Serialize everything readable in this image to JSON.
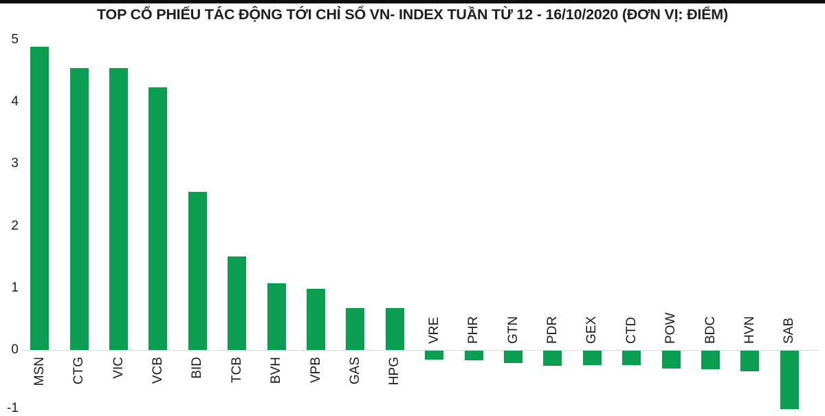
{
  "chart_data": {
    "type": "bar",
    "title": "TOP CỔ PHIẾU TÁC ĐỘNG TỚI CHỈ SỐ VN- INDEX TUẦN TỪ 12 - 16/10/2020 (ĐƠN VỊ: ĐIỂM)",
    "categories": [
      "MSN",
      "CTG",
      "VIC",
      "VCB",
      "BID",
      "TCB",
      "BVH",
      "VPB",
      "GAS",
      "HPG",
      "VRE",
      "PHR",
      "GTN",
      "PDR",
      "GEX",
      "CTD",
      "POW",
      "BDC",
      "HVN",
      "SAB"
    ],
    "values": [
      4.89,
      4.54,
      4.54,
      4.23,
      2.55,
      1.51,
      1.07,
      0.99,
      0.68,
      0.68,
      -0.15,
      -0.16,
      -0.2,
      -0.25,
      -0.24,
      -0.24,
      -0.29,
      -0.3,
      -0.34,
      -0.95
    ],
    "y_ticks": [
      5,
      4,
      3,
      2,
      1,
      0,
      -1
    ],
    "ylim": [
      -1,
      5
    ],
    "xlabel": "",
    "ylabel": "",
    "legend": "none",
    "grid": "zero-baseline-only",
    "bar_color": "#0A9E50",
    "gridline_color": "#D9D9D9",
    "text_color": "#1C1C1C",
    "title_color": "#221E1F",
    "x_label_rotation_deg": -90
  }
}
